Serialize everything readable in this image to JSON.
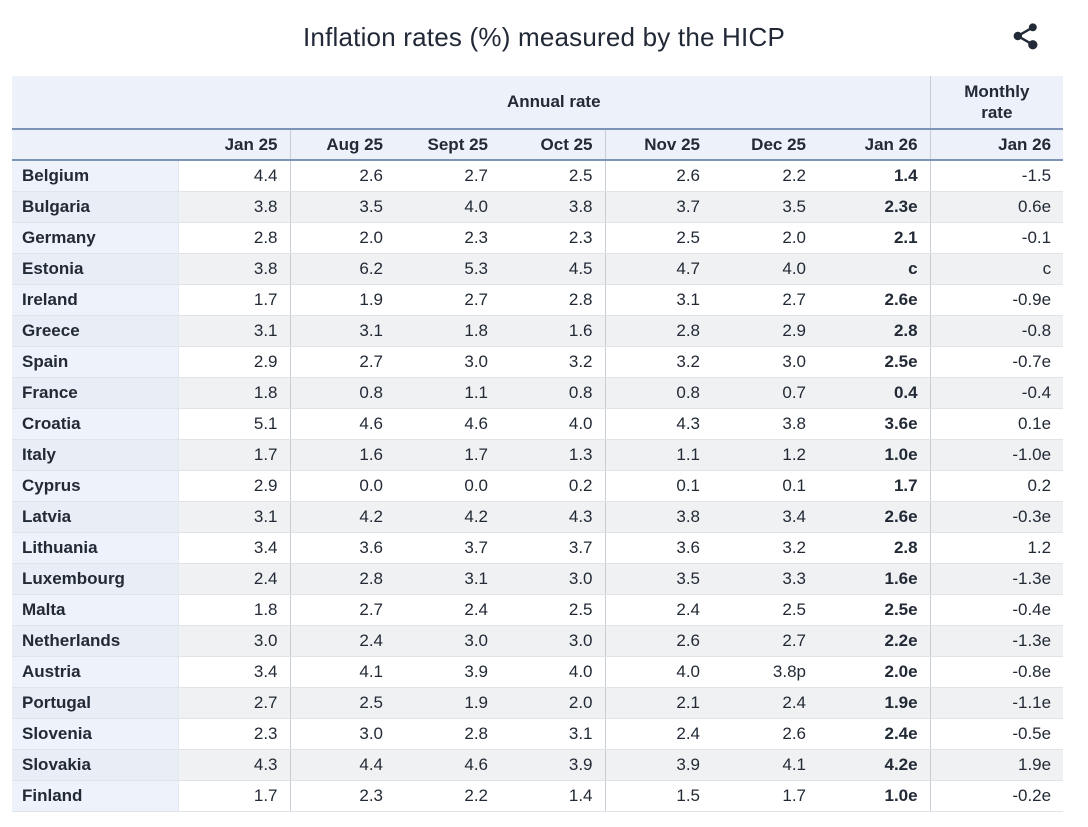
{
  "header": {
    "share_icon": "share-icon"
  },
  "colors": {
    "header_bg": "#edf1fa",
    "country_bg": "#eef2fa",
    "country_bg_alt": "#e9edf5",
    "row_bg": "#ffffff",
    "row_bg_alt": "#f0f1f3",
    "accent_line": "#7d93b8",
    "row_border": "#e0e3e8",
    "group_border": "#c9cdd6",
    "text": "#222a36",
    "title_text": "#212836"
  },
  "chart_data": {
    "type": "table",
    "title": "Inflation rates (%) measured by the HICP",
    "group_headers": {
      "annual": "Annual rate",
      "monthly": "Monthly rate"
    },
    "annual_columns": [
      "Jan 25",
      "Aug 25",
      "Sept 25",
      "Oct 25",
      "Nov 25",
      "Dec 25",
      "Jan 26"
    ],
    "monthly_column": "Jan 26",
    "rows": [
      {
        "country": "Belgium",
        "annual": [
          "4.4",
          "2.6",
          "2.7",
          "2.5",
          "2.6",
          "2.2",
          "1.4"
        ],
        "monthly": "-1.5"
      },
      {
        "country": "Bulgaria",
        "annual": [
          "3.8",
          "3.5",
          "4.0",
          "3.8",
          "3.7",
          "3.5",
          "2.3e"
        ],
        "monthly": "0.6e"
      },
      {
        "country": "Germany",
        "annual": [
          "2.8",
          "2.0",
          "2.3",
          "2.3",
          "2.5",
          "2.0",
          "2.1"
        ],
        "monthly": "-0.1"
      },
      {
        "country": "Estonia",
        "annual": [
          "3.8",
          "6.2",
          "5.3",
          "4.5",
          "4.7",
          "4.0",
          "c"
        ],
        "monthly": "c"
      },
      {
        "country": "Ireland",
        "annual": [
          "1.7",
          "1.9",
          "2.7",
          "2.8",
          "3.1",
          "2.7",
          "2.6e"
        ],
        "monthly": "-0.9e"
      },
      {
        "country": "Greece",
        "annual": [
          "3.1",
          "3.1",
          "1.8",
          "1.6",
          "2.8",
          "2.9",
          "2.8"
        ],
        "monthly": "-0.8"
      },
      {
        "country": "Spain",
        "annual": [
          "2.9",
          "2.7",
          "3.0",
          "3.2",
          "3.2",
          "3.0",
          "2.5e"
        ],
        "monthly": "-0.7e"
      },
      {
        "country": "France",
        "annual": [
          "1.8",
          "0.8",
          "1.1",
          "0.8",
          "0.8",
          "0.7",
          "0.4"
        ],
        "monthly": "-0.4"
      },
      {
        "country": "Croatia",
        "annual": [
          "5.1",
          "4.6",
          "4.6",
          "4.0",
          "4.3",
          "3.8",
          "3.6e"
        ],
        "monthly": "0.1e"
      },
      {
        "country": "Italy",
        "annual": [
          "1.7",
          "1.6",
          "1.7",
          "1.3",
          "1.1",
          "1.2",
          "1.0e"
        ],
        "monthly": "-1.0e"
      },
      {
        "country": "Cyprus",
        "annual": [
          "2.9",
          "0.0",
          "0.0",
          "0.2",
          "0.1",
          "0.1",
          "1.7"
        ],
        "monthly": "0.2"
      },
      {
        "country": "Latvia",
        "annual": [
          "3.1",
          "4.2",
          "4.2",
          "4.3",
          "3.8",
          "3.4",
          "2.6e"
        ],
        "monthly": "-0.3e"
      },
      {
        "country": "Lithuania",
        "annual": [
          "3.4",
          "3.6",
          "3.7",
          "3.7",
          "3.6",
          "3.2",
          "2.8"
        ],
        "monthly": "1.2"
      },
      {
        "country": "Luxembourg",
        "annual": [
          "2.4",
          "2.8",
          "3.1",
          "3.0",
          "3.5",
          "3.3",
          "1.6e"
        ],
        "monthly": "-1.3e"
      },
      {
        "country": "Malta",
        "annual": [
          "1.8",
          "2.7",
          "2.4",
          "2.5",
          "2.4",
          "2.5",
          "2.5e"
        ],
        "monthly": "-0.4e"
      },
      {
        "country": "Netherlands",
        "annual": [
          "3.0",
          "2.4",
          "3.0",
          "3.0",
          "2.6",
          "2.7",
          "2.2e"
        ],
        "monthly": "-1.3e"
      },
      {
        "country": "Austria",
        "annual": [
          "3.4",
          "4.1",
          "3.9",
          "4.0",
          "4.0",
          "3.8p",
          "2.0e"
        ],
        "monthly": "-0.8e"
      },
      {
        "country": "Portugal",
        "annual": [
          "2.7",
          "2.5",
          "1.9",
          "2.0",
          "2.1",
          "2.4",
          "1.9e"
        ],
        "monthly": "-1.1e"
      },
      {
        "country": "Slovenia",
        "annual": [
          "2.3",
          "3.0",
          "2.8",
          "3.1",
          "2.4",
          "2.6",
          "2.4e"
        ],
        "monthly": "-0.5e"
      },
      {
        "country": "Slovakia",
        "annual": [
          "4.3",
          "4.4",
          "4.6",
          "3.9",
          "3.9",
          "4.1",
          "4.2e"
        ],
        "monthly": "1.9e"
      },
      {
        "country": "Finland",
        "annual": [
          "1.7",
          "2.3",
          "2.2",
          "1.4",
          "1.5",
          "1.7",
          "1.0e"
        ],
        "monthly": "-0.2e"
      }
    ]
  }
}
